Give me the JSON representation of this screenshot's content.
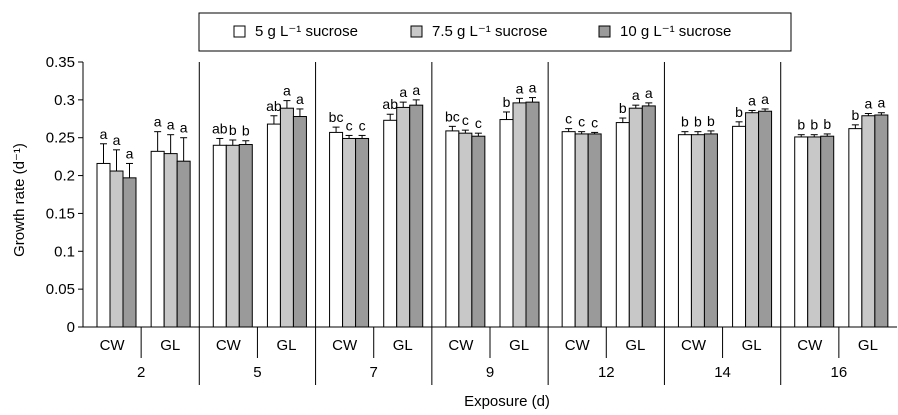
{
  "chart_data": {
    "type": "bar",
    "ylabel": "Growth rate (d⁻¹)",
    "xlabel": "Exposure (d)",
    "ylim": [
      0,
      0.35
    ],
    "yticks": [
      "0",
      "0.05",
      "0.1",
      "0.15",
      "0.2",
      "0.25",
      "0.3",
      "0.35"
    ],
    "legend_position": "top",
    "grid": false,
    "series": [
      {
        "name": "5 g L⁻¹ sucrose",
        "color": "#ffffff"
      },
      {
        "name": "7.5 g L⁻¹ sucrose",
        "color": "#c8c8c8"
      },
      {
        "name": "10 g L⁻¹ sucrose",
        "color": "#9a9a9a"
      }
    ],
    "exposures": [
      {
        "label": "2",
        "subgroups": [
          {
            "label": "CW",
            "values": [
              0.216,
              0.206,
              0.197
            ],
            "errors": [
              0.026,
              0.028,
              0.019
            ],
            "letters": [
              "a",
              "a",
              "a"
            ]
          },
          {
            "label": "GL",
            "values": [
              0.232,
              0.229,
              0.219
            ],
            "errors": [
              0.026,
              0.025,
              0.031
            ],
            "letters": [
              "a",
              "a",
              "a"
            ]
          }
        ]
      },
      {
        "label": "5",
        "subgroups": [
          {
            "label": "CW",
            "values": [
              0.24,
              0.24,
              0.241
            ],
            "errors": [
              0.009,
              0.007,
              0.005
            ],
            "letters": [
              "ab",
              "b",
              "b"
            ]
          },
          {
            "label": "GL",
            "values": [
              0.268,
              0.289,
              0.278
            ],
            "errors": [
              0.011,
              0.01,
              0.01
            ],
            "letters": [
              "ab",
              "a",
              "a"
            ]
          }
        ]
      },
      {
        "label": "7",
        "subgroups": [
          {
            "label": "CW",
            "values": [
              0.257,
              0.249,
              0.249
            ],
            "errors": [
              0.007,
              0.004,
              0.004
            ],
            "letters": [
              "bc",
              "c",
              "c"
            ]
          },
          {
            "label": "GL",
            "values": [
              0.273,
              0.29,
              0.293
            ],
            "errors": [
              0.008,
              0.007,
              0.007
            ],
            "letters": [
              "ab",
              "a",
              "a"
            ]
          }
        ]
      },
      {
        "label": "9",
        "subgroups": [
          {
            "label": "CW",
            "values": [
              0.259,
              0.256,
              0.252
            ],
            "errors": [
              0.006,
              0.004,
              0.004
            ],
            "letters": [
              "bc",
              "c",
              "c"
            ]
          },
          {
            "label": "GL",
            "values": [
              0.274,
              0.296,
              0.297
            ],
            "errors": [
              0.01,
              0.006,
              0.006
            ],
            "letters": [
              "b",
              "a",
              "a"
            ]
          }
        ]
      },
      {
        "label": "12",
        "subgroups": [
          {
            "label": "CW",
            "values": [
              0.258,
              0.255,
              0.255
            ],
            "errors": [
              0.004,
              0.003,
              0.002
            ],
            "letters": [
              "c",
              "c",
              "c"
            ]
          },
          {
            "label": "GL",
            "values": [
              0.27,
              0.289,
              0.292
            ],
            "errors": [
              0.006,
              0.004,
              0.004
            ],
            "letters": [
              "b",
              "a",
              "a"
            ]
          }
        ]
      },
      {
        "label": "14",
        "subgroups": [
          {
            "label": "CW",
            "values": [
              0.254,
              0.254,
              0.255
            ],
            "errors": [
              0.004,
              0.004,
              0.004
            ],
            "letters": [
              "b",
              "b",
              "b"
            ]
          },
          {
            "label": "GL",
            "values": [
              0.265,
              0.283,
              0.285
            ],
            "errors": [
              0.006,
              0.003,
              0.003
            ],
            "letters": [
              "b",
              "a",
              "a"
            ]
          }
        ]
      },
      {
        "label": "16",
        "subgroups": [
          {
            "label": "CW",
            "values": [
              0.251,
              0.251,
              0.252
            ],
            "errors": [
              0.003,
              0.003,
              0.003
            ],
            "letters": [
              "b",
              "b",
              "b"
            ]
          },
          {
            "label": "GL",
            "values": [
              0.262,
              0.279,
              0.28
            ],
            "errors": [
              0.005,
              0.003,
              0.003
            ],
            "letters": [
              "b",
              "a",
              "a"
            ]
          }
        ]
      }
    ]
  }
}
